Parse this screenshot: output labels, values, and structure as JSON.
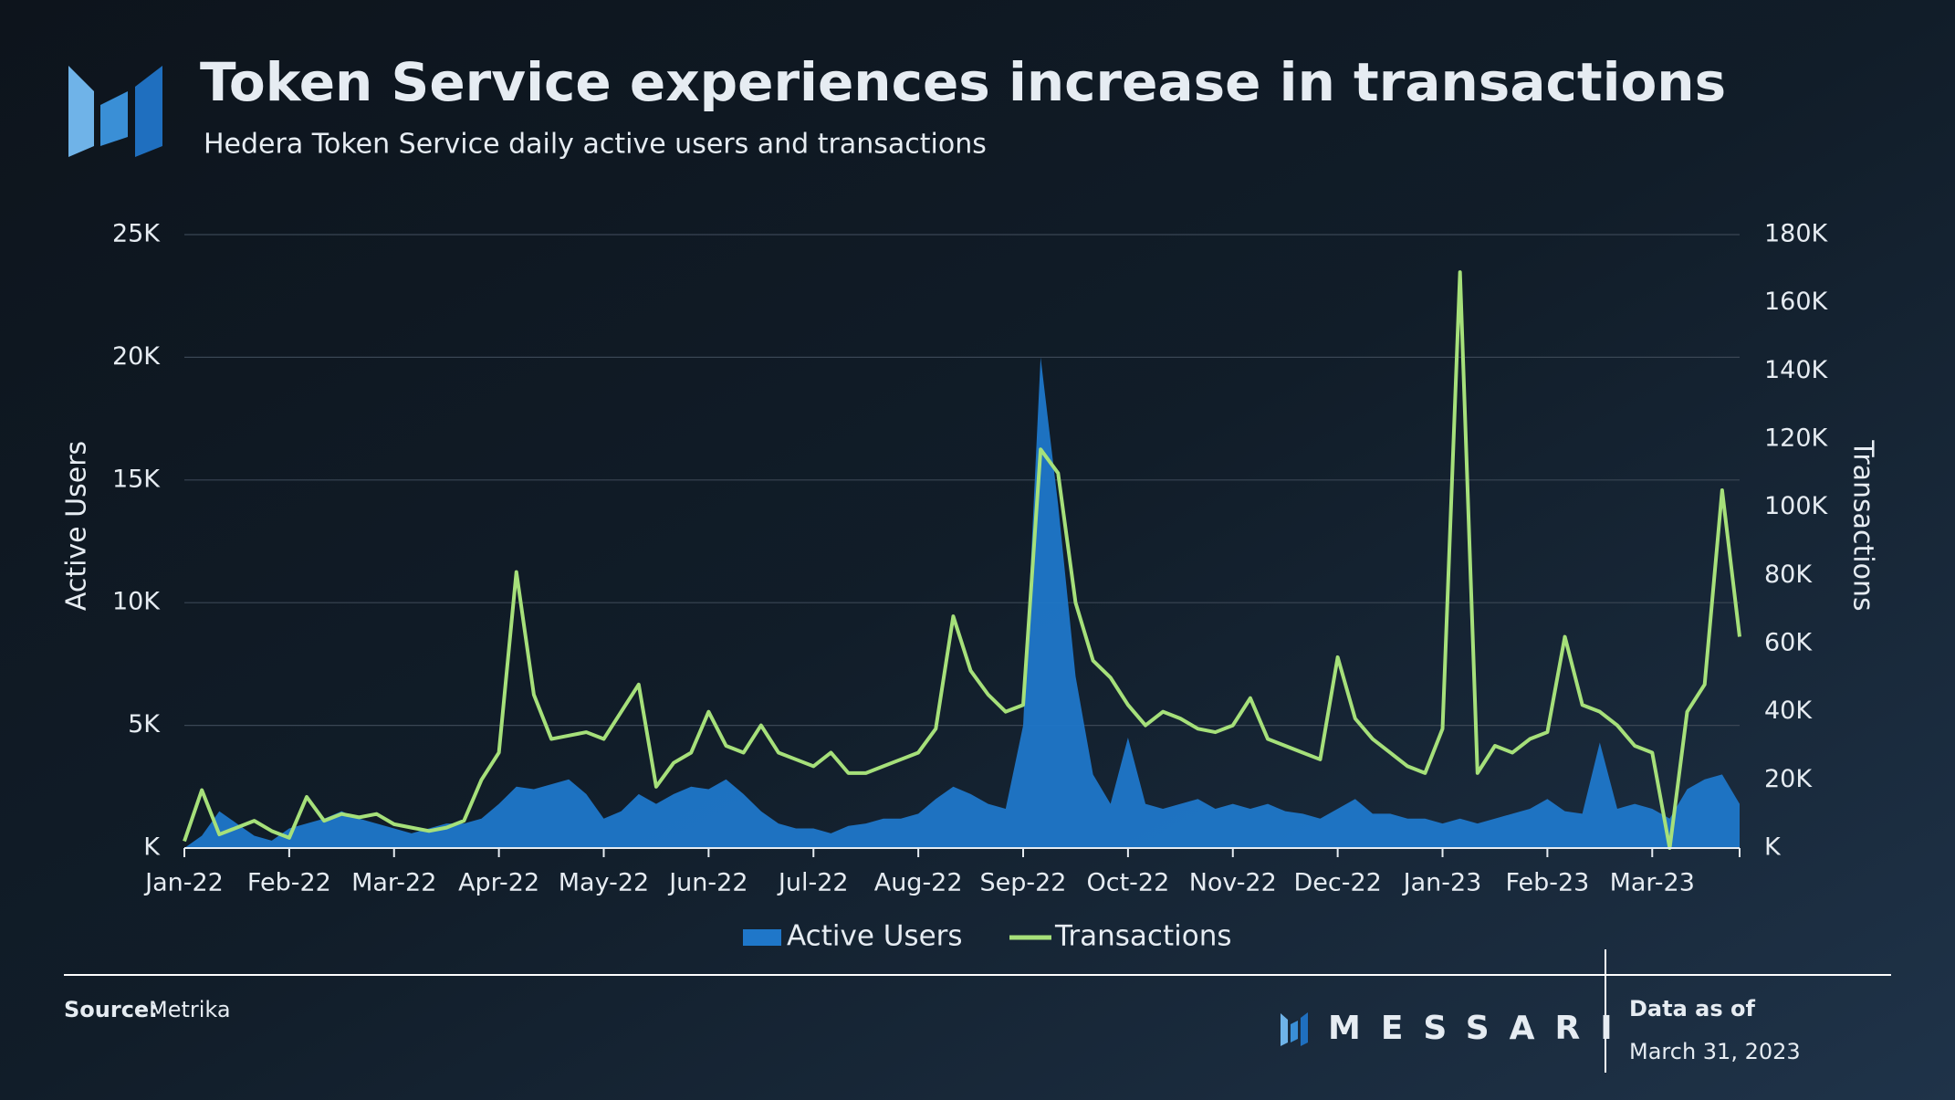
{
  "chart_data": {
    "type": "combo",
    "title": "Token Service experiences increase in transactions",
    "subtitle": "Hedera Token Service daily active users and transactions",
    "y_label": "Active Users",
    "y2_label": "Transactions",
    "x": [
      "Jan-22",
      null,
      null,
      null,
      null,
      null,
      "Feb-22",
      null,
      null,
      null,
      null,
      null,
      "Mar-22",
      null,
      null,
      null,
      null,
      null,
      "Apr-22",
      null,
      null,
      null,
      null,
      null,
      "May-22",
      null,
      null,
      null,
      null,
      null,
      "Jun-22",
      null,
      null,
      null,
      null,
      null,
      "Jul-22",
      null,
      null,
      null,
      null,
      null,
      "Aug-22",
      null,
      null,
      null,
      null,
      null,
      "Sep-22",
      null,
      null,
      null,
      null,
      null,
      "Oct-22",
      null,
      null,
      null,
      null,
      null,
      "Nov-22",
      null,
      null,
      null,
      null,
      null,
      "Dec-22",
      null,
      null,
      null,
      null,
      null,
      "Jan-23",
      null,
      null,
      null,
      null,
      null,
      "Feb-23",
      null,
      null,
      null,
      null,
      null,
      "Mar-23",
      null,
      null,
      null,
      null,
      null
    ],
    "series": [
      {
        "name": "Active Users",
        "type": "area",
        "color": "#1f77c9",
        "axis": "y",
        "values": [
          0,
          500,
          1500,
          1000,
          500,
          300,
          800,
          1000,
          1200,
          1500,
          1200,
          1000,
          800,
          600,
          800,
          1000,
          1000,
          1200,
          1800,
          2500,
          2400,
          2600,
          2800,
          2200,
          1200,
          1500,
          2200,
          1800,
          2200,
          2500,
          2400,
          2800,
          2200,
          1500,
          1000,
          800,
          800,
          600,
          900,
          1000,
          1200,
          1200,
          1400,
          2000,
          2500,
          2200,
          1800,
          1600,
          5000,
          20000,
          14000,
          7000,
          3000,
          1800,
          4500,
          1800,
          1600,
          1800,
          2000,
          1600,
          1800,
          1600,
          1800,
          1500,
          1400,
          1200,
          1600,
          2000,
          1400,
          1400,
          1200,
          1200,
          1000,
          1200,
          1000,
          1200,
          1400,
          1600,
          2000,
          1500,
          1400,
          4300,
          1600,
          1800,
          1600,
          1200,
          2400,
          2800,
          3000,
          1800
        ]
      },
      {
        "name": "Transactions",
        "type": "line",
        "color": "#a6e07a",
        "axis": "y2",
        "values": [
          2000,
          17000,
          4000,
          6000,
          8000,
          5000,
          3000,
          15000,
          8000,
          10000,
          9000,
          10000,
          7000,
          6000,
          5000,
          6000,
          8000,
          20000,
          28000,
          81000,
          45000,
          32000,
          33000,
          34000,
          32000,
          40000,
          48000,
          18000,
          25000,
          28000,
          40000,
          30000,
          28000,
          36000,
          28000,
          26000,
          24000,
          28000,
          22000,
          22000,
          24000,
          26000,
          28000,
          35000,
          68000,
          52000,
          45000,
          40000,
          42000,
          117000,
          110000,
          72000,
          55000,
          50000,
          42000,
          36000,
          40000,
          38000,
          35000,
          34000,
          36000,
          44000,
          32000,
          30000,
          28000,
          26000,
          56000,
          38000,
          32000,
          28000,
          24000,
          22000,
          35000,
          169000,
          22000,
          30000,
          28000,
          32000,
          34000,
          62000,
          42000,
          40000,
          36000,
          30000,
          28000,
          0,
          40000,
          48000,
          105000,
          62000
        ]
      }
    ],
    "ylim": [
      0,
      25000
    ],
    "yticks": [
      {
        "value": 0,
        "label": "K"
      },
      {
        "value": 5000,
        "label": "5K"
      },
      {
        "value": 10000,
        "label": "10K"
      },
      {
        "value": 15000,
        "label": "15K"
      },
      {
        "value": 20000,
        "label": "20K"
      },
      {
        "value": 25000,
        "label": "25K"
      }
    ],
    "y2lim": [
      0,
      180000
    ],
    "y2ticks": [
      {
        "value": 0,
        "label": "K"
      },
      {
        "value": 20000,
        "label": "20K"
      },
      {
        "value": 40000,
        "label": "40K"
      },
      {
        "value": 60000,
        "label": "60K"
      },
      {
        "value": 80000,
        "label": "80K"
      },
      {
        "value": 100000,
        "label": "100K"
      },
      {
        "value": 120000,
        "label": "120K"
      },
      {
        "value": 140000,
        "label": "140K"
      },
      {
        "value": 160000,
        "label": "160K"
      },
      {
        "value": 180000,
        "label": "180K"
      }
    ],
    "grid": true,
    "legend": "bottom"
  },
  "footer": {
    "source_label": "Source:",
    "source": "Metrika",
    "brand": "MESSARI",
    "data_as_of": "Data as of",
    "date": "March 31, 2023"
  }
}
